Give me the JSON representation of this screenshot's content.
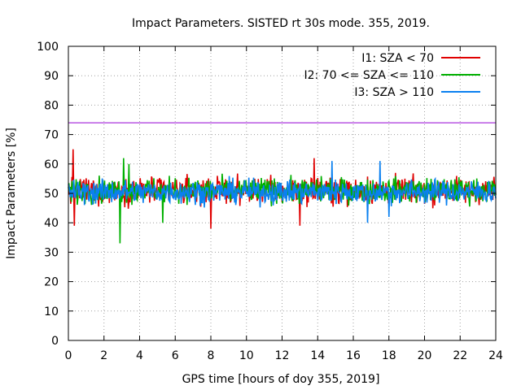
{
  "chart_data": {
    "type": "line",
    "title": "Impact Parameters. SISTED rt 30s mode. 355, 2019.",
    "xlabel": "GPS time [hours of doy 355, 2019]",
    "ylabel": "Impact Parameters [%]",
    "xlim": [
      0,
      24
    ],
    "ylim": [
      0,
      100
    ],
    "xticks": [
      0,
      2,
      4,
      6,
      8,
      10,
      12,
      14,
      16,
      18,
      20,
      22,
      24
    ],
    "yticks": [
      0,
      10,
      20,
      30,
      40,
      50,
      60,
      70,
      80,
      90,
      100
    ],
    "grid": true,
    "legend_position": "top-right",
    "reference_line": {
      "y": 74,
      "color": "#9400d3"
    },
    "series": [
      {
        "name": "I1: SZA < 70",
        "color": "#e00000",
        "mean": 51,
        "spread": 4.2,
        "extremes": [
          [
            0.25,
            65
          ],
          [
            0.35,
            39
          ],
          [
            8.0,
            38
          ],
          [
            13.0,
            39
          ],
          [
            13.8,
            62
          ]
        ]
      },
      {
        "name": "I2: 70 <= SZA <= 110",
        "color": "#00b000",
        "mean": 51,
        "spread": 4.0,
        "extremes": [
          [
            2.9,
            64
          ],
          [
            2.9,
            33
          ],
          [
            3.1,
            62
          ],
          [
            5.3,
            40
          ],
          [
            3.4,
            60
          ]
        ]
      },
      {
        "name": "I3: SZA > 110",
        "color": "#0a80f0",
        "mean": 50.5,
        "spread": 3.8,
        "extremes": [
          [
            14.8,
            61
          ],
          [
            16.8,
            40
          ],
          [
            17.5,
            61
          ],
          [
            18.0,
            42
          ]
        ]
      }
    ]
  }
}
